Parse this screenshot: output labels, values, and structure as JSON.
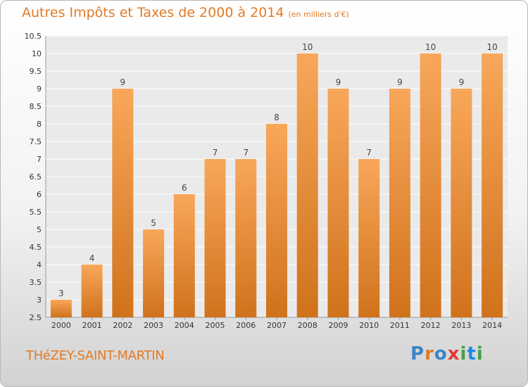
{
  "header": {
    "title": "Autres Impôts et Taxes de 2000 à 2014",
    "unit": "(en milliers d'€)"
  },
  "footer": {
    "town": "THéZEY-SAINT-MARTIN",
    "brand": "Proxiti"
  },
  "colors": {
    "accent": "#e07b26",
    "bar_top": "#f8a75a",
    "bar_bottom": "#d0721c"
  },
  "chart_data": {
    "type": "bar",
    "title": "Autres Impôts et Taxes de 2000 à 2014",
    "xlabel": "",
    "ylabel": "",
    "categories": [
      "2000",
      "2001",
      "2002",
      "2003",
      "2004",
      "2005",
      "2006",
      "2007",
      "2008",
      "2009",
      "2010",
      "2011",
      "2012",
      "2013",
      "2014"
    ],
    "values": [
      3,
      4,
      9,
      5,
      6,
      7,
      7,
      8,
      10,
      9,
      7,
      9,
      10,
      9,
      10
    ],
    "ylim": [
      2.5,
      10.5
    ],
    "yticks": [
      2.5,
      3,
      3.5,
      4,
      4.5,
      5,
      5.5,
      6,
      6.5,
      7,
      7.5,
      8,
      8.5,
      9,
      9.5,
      10,
      10.5
    ],
    "grid": true,
    "legend": "none"
  }
}
